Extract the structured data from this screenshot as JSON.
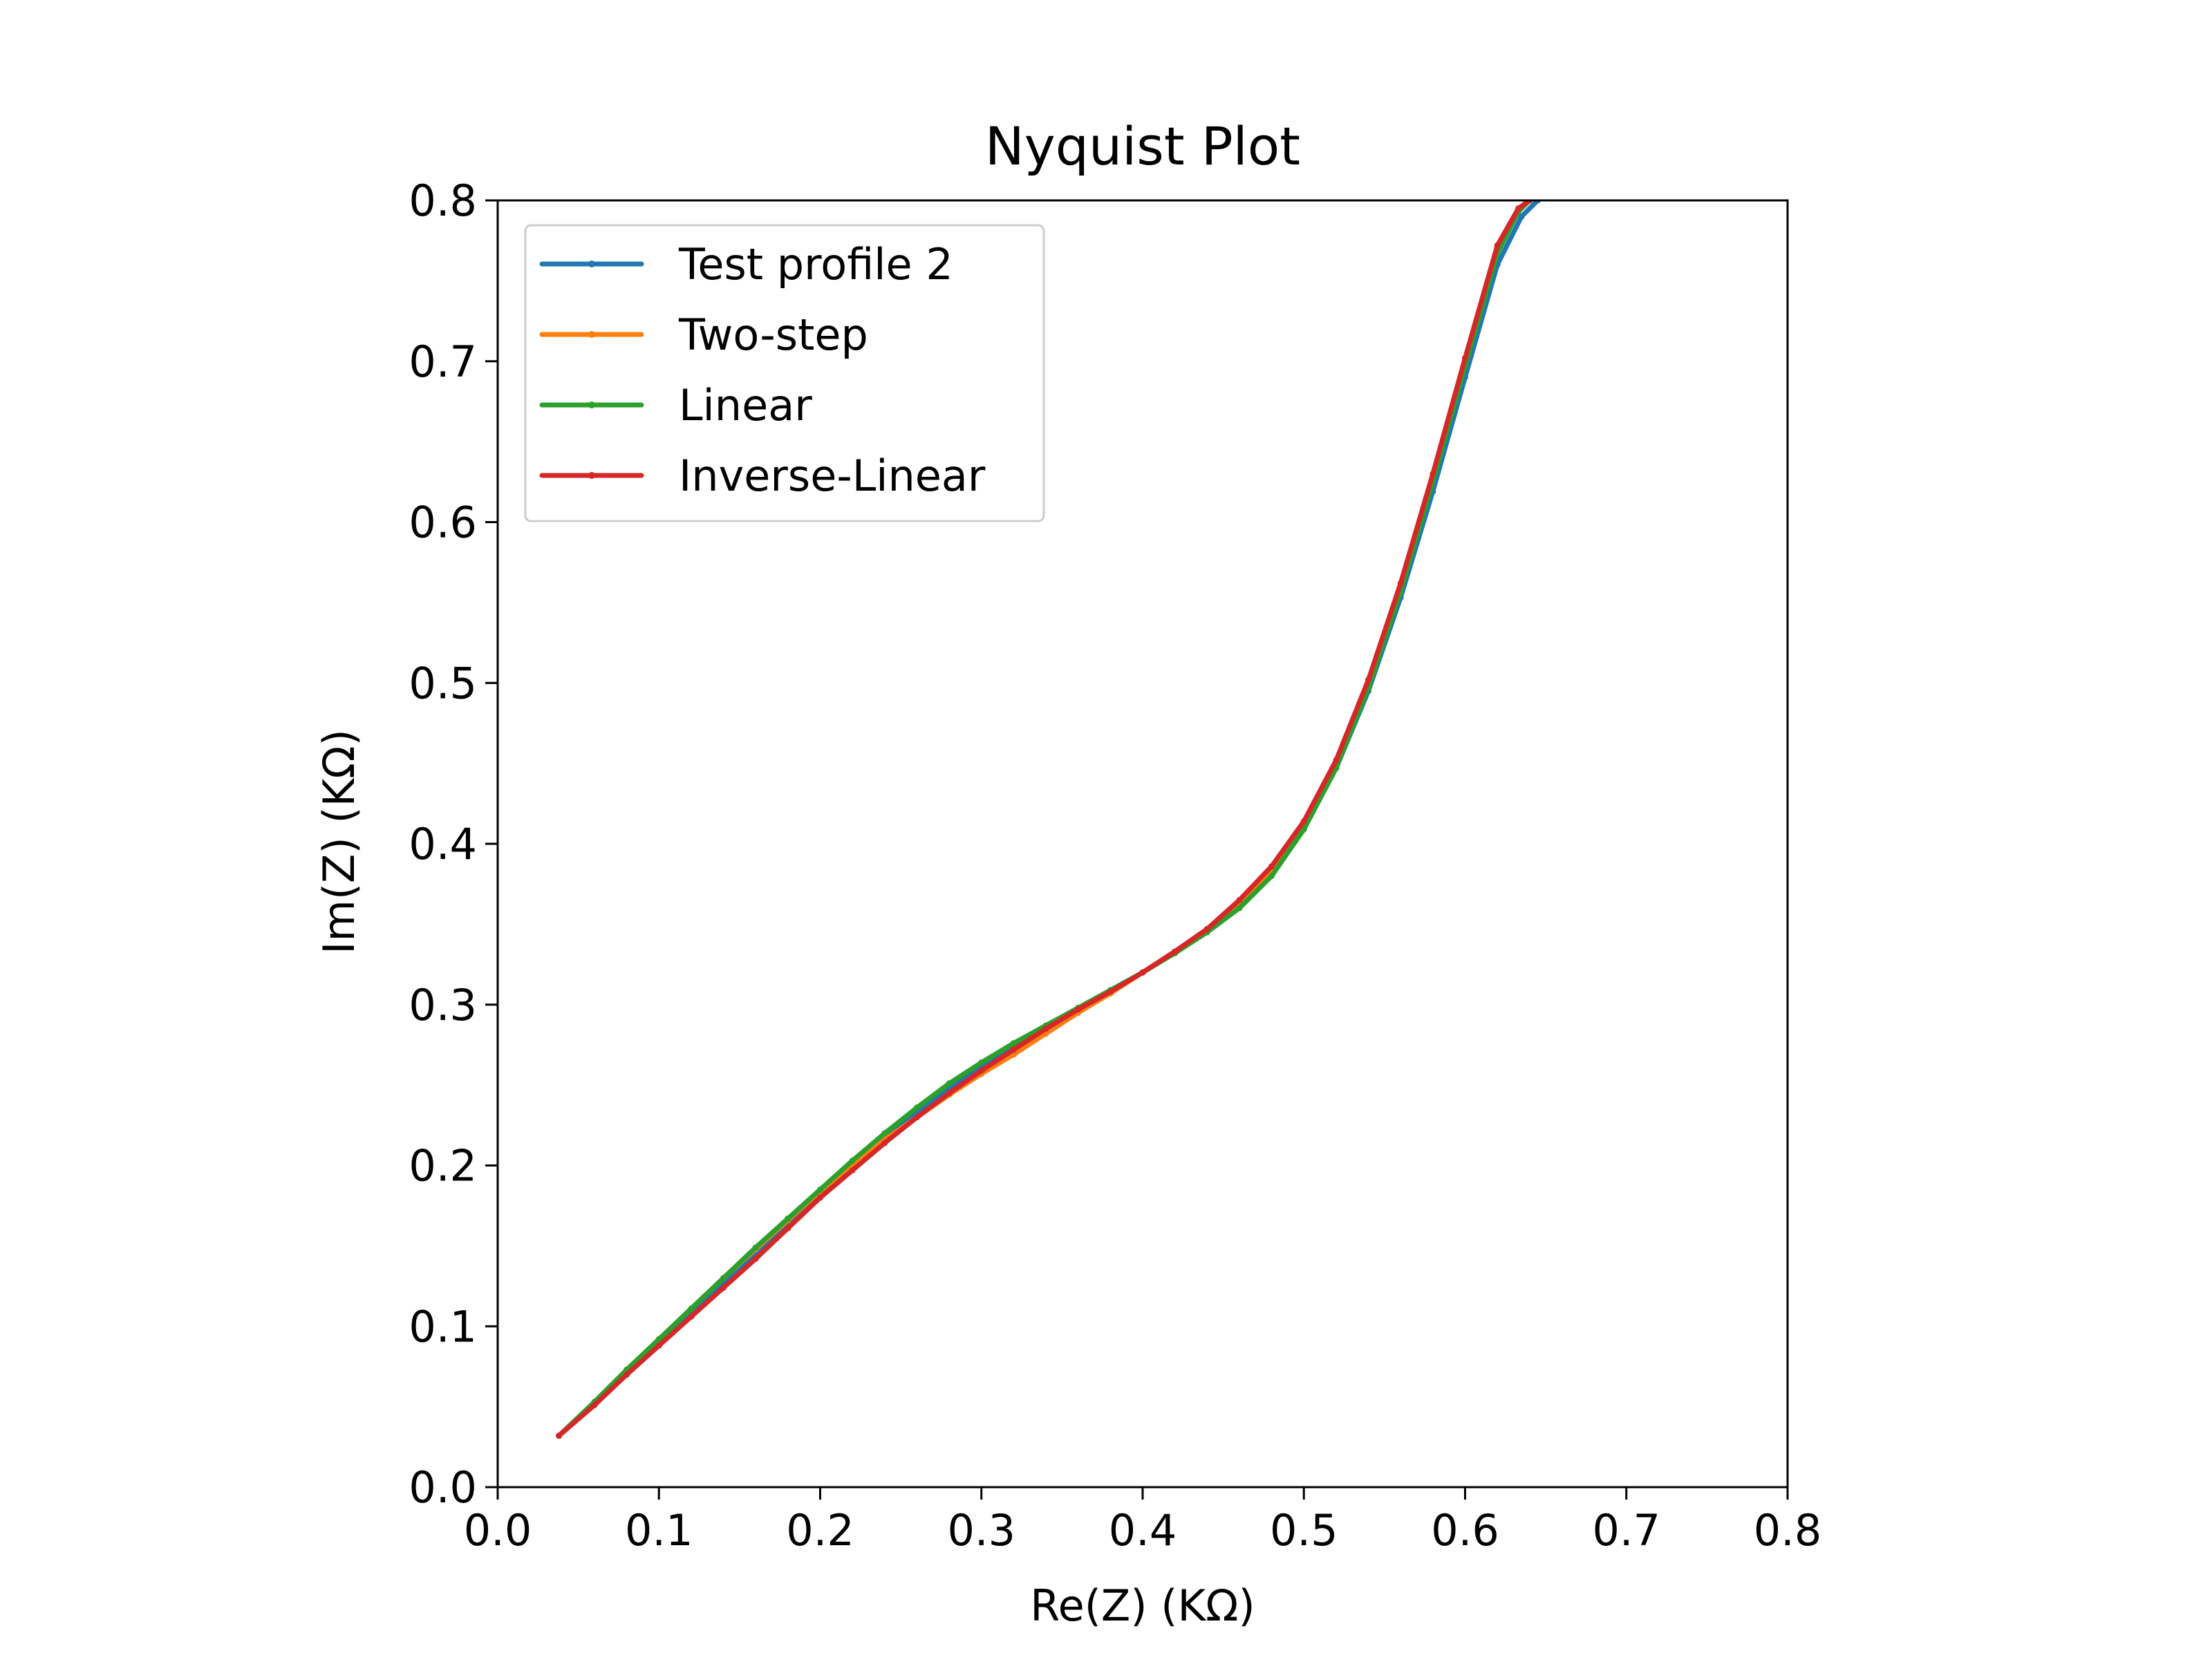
{
  "chart_data": {
    "type": "line",
    "title": "Nyquist Plot",
    "xlabel": "Re(Z) (KΩ)",
    "ylabel": "Im(Z) (KΩ)",
    "xlim": [
      0.0,
      0.8
    ],
    "ylim": [
      0.0,
      0.8
    ],
    "xticks": [
      "0.0",
      "0.1",
      "0.2",
      "0.3",
      "0.4",
      "0.5",
      "0.6",
      "0.7",
      "0.8"
    ],
    "yticks": [
      "0.0",
      "0.1",
      "0.2",
      "0.3",
      "0.4",
      "0.5",
      "0.6",
      "0.7",
      "0.8"
    ],
    "grid": false,
    "legend_position": "upper-left",
    "series": [
      {
        "name": "Test profile 2",
        "color": "#1f77b4",
        "x": [
          0.038,
          0.06,
          0.08,
          0.1,
          0.12,
          0.14,
          0.16,
          0.18,
          0.2,
          0.22,
          0.24,
          0.26,
          0.28,
          0.3,
          0.32,
          0.34,
          0.36,
          0.38,
          0.4,
          0.42,
          0.44,
          0.46,
          0.48,
          0.5,
          0.52,
          0.54,
          0.56,
          0.58,
          0.6,
          0.62,
          0.635,
          0.645
        ],
        "y": [
          0.032,
          0.052,
          0.071,
          0.089,
          0.107,
          0.126,
          0.145,
          0.163,
          0.182,
          0.2,
          0.217,
          0.233,
          0.248,
          0.262,
          0.274,
          0.286,
          0.297,
          0.308,
          0.32,
          0.333,
          0.347,
          0.362,
          0.382,
          0.41,
          0.447,
          0.495,
          0.553,
          0.619,
          0.69,
          0.76,
          0.79,
          0.8
        ]
      },
      {
        "name": "Two-step",
        "color": "#ff7f0e",
        "x": [
          0.038,
          0.06,
          0.08,
          0.1,
          0.12,
          0.14,
          0.16,
          0.18,
          0.2,
          0.22,
          0.24,
          0.26,
          0.28,
          0.3,
          0.32,
          0.34,
          0.36,
          0.38,
          0.4,
          0.42,
          0.44,
          0.46,
          0.48,
          0.5,
          0.52,
          0.54,
          0.56,
          0.58,
          0.6,
          0.62,
          0.633,
          0.64
        ],
        "y": [
          0.032,
          0.053,
          0.073,
          0.092,
          0.111,
          0.13,
          0.148,
          0.166,
          0.184,
          0.201,
          0.216,
          0.23,
          0.244,
          0.257,
          0.269,
          0.282,
          0.295,
          0.307,
          0.32,
          0.333,
          0.347,
          0.364,
          0.384,
          0.413,
          0.451,
          0.5,
          0.56,
          0.628,
          0.7,
          0.77,
          0.794,
          0.8
        ]
      },
      {
        "name": "Linear",
        "color": "#2ca02c",
        "x": [
          0.038,
          0.06,
          0.08,
          0.1,
          0.12,
          0.14,
          0.16,
          0.18,
          0.2,
          0.22,
          0.24,
          0.26,
          0.28,
          0.3,
          0.32,
          0.34,
          0.36,
          0.38,
          0.4,
          0.42,
          0.44,
          0.46,
          0.48,
          0.5,
          0.52,
          0.54,
          0.56,
          0.58,
          0.6,
          0.62,
          0.633,
          0.64
        ],
        "y": [
          0.032,
          0.053,
          0.073,
          0.092,
          0.111,
          0.13,
          0.149,
          0.167,
          0.185,
          0.203,
          0.22,
          0.236,
          0.251,
          0.264,
          0.276,
          0.287,
          0.298,
          0.309,
          0.32,
          0.332,
          0.345,
          0.36,
          0.38,
          0.409,
          0.447,
          0.497,
          0.557,
          0.625,
          0.697,
          0.767,
          0.793,
          0.8
        ]
      },
      {
        "name": "Inverse-Linear",
        "color": "#d62728",
        "x": [
          0.038,
          0.06,
          0.08,
          0.1,
          0.12,
          0.14,
          0.16,
          0.18,
          0.2,
          0.22,
          0.24,
          0.26,
          0.28,
          0.3,
          0.32,
          0.34,
          0.36,
          0.38,
          0.4,
          0.42,
          0.44,
          0.46,
          0.48,
          0.5,
          0.52,
          0.54,
          0.56,
          0.58,
          0.6,
          0.62,
          0.633,
          0.64
        ],
        "y": [
          0.032,
          0.051,
          0.07,
          0.088,
          0.106,
          0.124,
          0.142,
          0.161,
          0.18,
          0.197,
          0.214,
          0.23,
          0.245,
          0.259,
          0.272,
          0.285,
          0.297,
          0.308,
          0.32,
          0.333,
          0.347,
          0.365,
          0.386,
          0.414,
          0.452,
          0.502,
          0.562,
          0.63,
          0.702,
          0.772,
          0.795,
          0.8
        ]
      }
    ]
  }
}
